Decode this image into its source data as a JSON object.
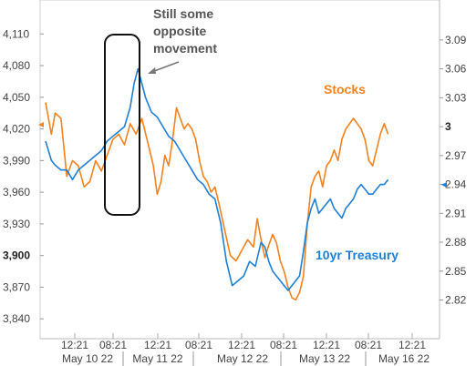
{
  "chart_data": {
    "type": "line",
    "grid": false,
    "x_ticks": [
      "12:21",
      "08:21",
      "12:21",
      "08:21",
      "12:21",
      "08:21",
      "12:21",
      "08:21",
      "12:21"
    ],
    "x_dates": [
      "May 10 22",
      "May 11 22",
      "May 12 22",
      "May 13 22",
      "May 16 22"
    ],
    "y_left": {
      "ticks": [
        "4,110",
        "4,080",
        "4,050",
        "4,020",
        "3,990",
        "3,960",
        "3,930",
        "3,900",
        "3,870",
        "3,840"
      ],
      "bold_tick": "3,900",
      "ylim": [
        3835,
        4118
      ]
    },
    "y_right": {
      "ticks": [
        "3.09",
        "3.06",
        "3.03",
        "3",
        "2.97",
        "2.94",
        "2.91",
        "2.88",
        "2.85",
        "2.82"
      ],
      "bold_tick": "3",
      "ylim": [
        2.795,
        3.105
      ]
    },
    "annotation": {
      "lines": [
        "Still some",
        "opposite",
        "movement"
      ]
    },
    "series": [
      {
        "name": "Stocks",
        "axis": "left",
        "color": "#F5821F",
        "points": [
          [
            0,
            4045
          ],
          [
            3,
            4015
          ],
          [
            5,
            4035
          ],
          [
            8,
            4030
          ],
          [
            11,
            3975
          ],
          [
            14,
            3990
          ],
          [
            17,
            3985
          ],
          [
            20,
            3965
          ],
          [
            23,
            3970
          ],
          [
            26,
            3990
          ],
          [
            29,
            3980
          ],
          [
            32,
            3995
          ],
          [
            35,
            4010
          ],
          [
            38,
            4015
          ],
          [
            41,
            4005
          ],
          [
            44,
            4025
          ],
          [
            47,
            4015
          ],
          [
            50,
            4030
          ],
          [
            53,
            4008
          ],
          [
            56,
            3985
          ],
          [
            58,
            3958
          ],
          [
            60,
            3970
          ],
          [
            62,
            3995
          ],
          [
            64,
            3985
          ],
          [
            66,
            4010
          ],
          [
            68,
            4040
          ],
          [
            70,
            4030
          ],
          [
            72,
            4020
          ],
          [
            74,
            4025
          ],
          [
            76,
            4020
          ],
          [
            78,
            4010
          ],
          [
            80,
            3990
          ],
          [
            82,
            3975
          ],
          [
            84,
            3970
          ],
          [
            86,
            3960
          ],
          [
            88,
            3965
          ],
          [
            90,
            3950
          ],
          [
            93,
            3925
          ],
          [
            96,
            3900
          ],
          [
            99,
            3895
          ],
          [
            102,
            3905
          ],
          [
            105,
            3915
          ],
          [
            108,
            3908
          ],
          [
            110,
            3935
          ],
          [
            112,
            3915
          ],
          [
            114,
            3898
          ],
          [
            116,
            3910
          ],
          [
            118,
            3920
          ],
          [
            120,
            3912
          ],
          [
            122,
            3895
          ],
          [
            124,
            3885
          ],
          [
            126,
            3870
          ],
          [
            128,
            3860
          ],
          [
            130,
            3858
          ],
          [
            132,
            3865
          ],
          [
            134,
            3880
          ],
          [
            136,
            3930
          ],
          [
            138,
            3965
          ],
          [
            140,
            3975
          ],
          [
            142,
            3980
          ],
          [
            144,
            3965
          ],
          [
            146,
            3985
          ],
          [
            148,
            3990
          ],
          [
            150,
            4000
          ],
          [
            152,
            3990
          ],
          [
            154,
            4010
          ],
          [
            156,
            4020
          ],
          [
            158,
            4025
          ],
          [
            160,
            4030
          ],
          [
            162,
            4025
          ],
          [
            164,
            4020
          ],
          [
            166,
            4010
          ],
          [
            168,
            3990
          ],
          [
            170,
            3985
          ],
          [
            172,
            4000
          ],
          [
            174,
            4015
          ],
          [
            176,
            4025
          ],
          [
            178,
            4015
          ]
        ]
      },
      {
        "name": "10yr Treasury",
        "axis": "right",
        "color": "#1F7FD6",
        "points": [
          [
            0,
            2.985
          ],
          [
            3,
            2.965
          ],
          [
            5,
            2.96
          ],
          [
            8,
            2.955
          ],
          [
            11,
            2.955
          ],
          [
            14,
            2.945
          ],
          [
            17,
            2.955
          ],
          [
            20,
            2.96
          ],
          [
            23,
            2.965
          ],
          [
            26,
            2.97
          ],
          [
            29,
            2.975
          ],
          [
            32,
            2.985
          ],
          [
            35,
            2.99
          ],
          [
            38,
            2.995
          ],
          [
            41,
            3.0
          ],
          [
            44,
            3.02
          ],
          [
            46,
            3.045
          ],
          [
            48,
            3.06
          ],
          [
            50,
            3.045
          ],
          [
            52,
            3.03
          ],
          [
            55,
            3.015
          ],
          [
            58,
            3.01
          ],
          [
            61,
            3.0
          ],
          [
            64,
            2.99
          ],
          [
            67,
            2.985
          ],
          [
            70,
            2.975
          ],
          [
            73,
            2.965
          ],
          [
            76,
            2.955
          ],
          [
            79,
            2.945
          ],
          [
            82,
            2.94
          ],
          [
            85,
            2.93
          ],
          [
            88,
            2.925
          ],
          [
            91,
            2.9
          ],
          [
            94,
            2.86
          ],
          [
            97,
            2.835
          ],
          [
            100,
            2.84
          ],
          [
            103,
            2.845
          ],
          [
            106,
            2.86
          ],
          [
            109,
            2.855
          ],
          [
            112,
            2.88
          ],
          [
            114,
            2.875
          ],
          [
            116,
            2.86
          ],
          [
            118,
            2.85
          ],
          [
            120,
            2.845
          ],
          [
            122,
            2.84
          ],
          [
            124,
            2.835
          ],
          [
            126,
            2.83
          ],
          [
            128,
            2.835
          ],
          [
            130,
            2.84
          ],
          [
            132,
            2.845
          ],
          [
            134,
            2.87
          ],
          [
            136,
            2.9
          ],
          [
            138,
            2.915
          ],
          [
            140,
            2.925
          ],
          [
            142,
            2.91
          ],
          [
            144,
            2.915
          ],
          [
            146,
            2.92
          ],
          [
            148,
            2.925
          ],
          [
            150,
            2.915
          ],
          [
            152,
            2.91
          ],
          [
            154,
            2.905
          ],
          [
            156,
            2.915
          ],
          [
            158,
            2.92
          ],
          [
            160,
            2.925
          ],
          [
            162,
            2.935
          ],
          [
            164,
            2.94
          ],
          [
            166,
            2.935
          ],
          [
            168,
            2.93
          ],
          [
            170,
            2.93
          ],
          [
            172,
            2.935
          ],
          [
            174,
            2.94
          ],
          [
            176,
            2.94
          ],
          [
            178,
            2.945
          ]
        ]
      }
    ],
    "x_domain": [
      0,
      200
    ]
  }
}
